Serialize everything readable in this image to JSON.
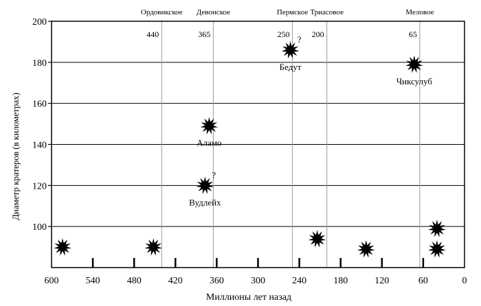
{
  "chart_data": {
    "type": "scatter",
    "title": "",
    "xlabel": "Миллионы лет назад",
    "ylabel": "Диаметр кратеров (в километрах)",
    "xlim": [
      600,
      0
    ],
    "ylim": [
      80,
      200
    ],
    "x_ticks": [
      600,
      540,
      480,
      420,
      360,
      300,
      240,
      180,
      120,
      60,
      0
    ],
    "y_ticks": [
      100,
      120,
      140,
      160,
      180,
      200
    ],
    "grid": "horizontal lines at y ticks",
    "periods": [
      {
        "name": "Ордовикское",
        "age": 440
      },
      {
        "name": "Девонское",
        "age": 365
      },
      {
        "name": "Пермское",
        "age": 250
      },
      {
        "name": "Триасовое",
        "age": 200
      },
      {
        "name": "Меловое",
        "age": 65
      }
    ],
    "points": [
      {
        "x": 584,
        "y": 90,
        "label": "",
        "uncertain": false
      },
      {
        "x": 452,
        "y": 90,
        "label": "",
        "uncertain": false
      },
      {
        "x": 371,
        "y": 149,
        "label": "Аламо",
        "uncertain": false
      },
      {
        "x": 377,
        "y": 120,
        "label": "Вудлейх",
        "uncertain": true
      },
      {
        "x": 253,
        "y": 186,
        "label": "Бедут",
        "uncertain": true
      },
      {
        "x": 214,
        "y": 94,
        "label": "",
        "uncertain": false
      },
      {
        "x": 143,
        "y": 89,
        "label": "",
        "uncertain": false
      },
      {
        "x": 73,
        "y": 179,
        "label": "Чиксулуб",
        "uncertain": false
      },
      {
        "x": 40,
        "y": 99,
        "label": "",
        "uncertain": false
      },
      {
        "x": 40,
        "y": 89,
        "label": "",
        "uncertain": false
      }
    ],
    "uncertain_mark": "?",
    "marker": "starburst-icon",
    "colors": {
      "marker": "#000000",
      "grid": "#000000",
      "period_line": "#999999"
    }
  }
}
